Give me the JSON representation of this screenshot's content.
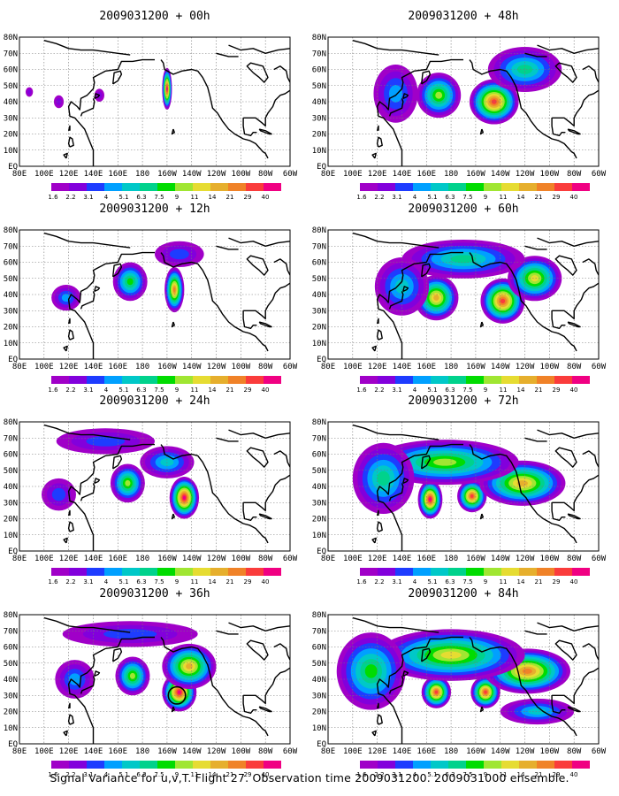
{
  "caption": "Signal Variance for u,v,T. Flight 27. Observation time 2009031200. 2009031000 ensemble.",
  "colors": {
    "scale": [
      "#a000c8",
      "#8200dc",
      "#1e3cff",
      "#00a0ff",
      "#00c8c8",
      "#00d28c",
      "#00dc00",
      "#a0e632",
      "#e6dc32",
      "#e6af2d",
      "#f08228",
      "#fa3c3c",
      "#f00082"
    ],
    "land": "#000000",
    "grid": "#777777"
  },
  "chart_data": [
    {
      "type": "heatmap",
      "title": "2009031200 + 00h",
      "x_ticks": [
        "80E",
        "100E",
        "120E",
        "140E",
        "160E",
        "180",
        "160W",
        "140W",
        "120W",
        "100W",
        "80W",
        "60W"
      ],
      "y_ticks": [
        "80N",
        "70N",
        "60N",
        "50N",
        "40N",
        "30N",
        "20N",
        "10N",
        "EQ"
      ],
      "colorbar": [
        "1.6",
        "2.2",
        "3.1",
        "4",
        "5.1",
        "6.3",
        "7.5",
        "9",
        "11",
        "14",
        "21",
        "29",
        "40"
      ],
      "blobs": [
        {
          "lon": 200,
          "lat": 48,
          "rx": 4,
          "ry": 13,
          "peak": 12
        },
        {
          "lon": 145,
          "lat": 44,
          "rx": 4,
          "ry": 4,
          "peak": 1
        },
        {
          "lon": 112,
          "lat": 40,
          "rx": 4,
          "ry": 4,
          "peak": 1
        },
        {
          "lon": 88,
          "lat": 46,
          "rx": 3,
          "ry": 3,
          "peak": 1
        }
      ]
    },
    {
      "type": "heatmap",
      "title": "2009031200 + 48h",
      "x_ticks": [
        "80E",
        "100E",
        "120E",
        "140E",
        "160E",
        "180",
        "160W",
        "140W",
        "120W",
        "100W",
        "80W",
        "60W"
      ],
      "y_ticks": [
        "80N",
        "70N",
        "60N",
        "50N",
        "40N",
        "30N",
        "20N",
        "10N",
        "EQ"
      ],
      "colorbar": [
        "1.6",
        "2.2",
        "3.1",
        "4",
        "5.1",
        "6.3",
        "7.5",
        "9",
        "11",
        "14",
        "21",
        "29",
        "40"
      ],
      "blobs": [
        {
          "lon": 215,
          "lat": 40,
          "rx": 20,
          "ry": 14,
          "peak": 11
        },
        {
          "lon": 170,
          "lat": 44,
          "rx": 18,
          "ry": 14,
          "peak": 7
        },
        {
          "lon": 240,
          "lat": 60,
          "rx": 30,
          "ry": 14,
          "peak": 5
        },
        {
          "lon": 135,
          "lat": 45,
          "rx": 18,
          "ry": 18,
          "peak": 3
        }
      ]
    },
    {
      "type": "heatmap",
      "title": "2009031200 + 12h",
      "x_ticks": [
        "80E",
        "100E",
        "120E",
        "140E",
        "160E",
        "180",
        "160W",
        "140W",
        "120W",
        "100W",
        "80W",
        "60W"
      ],
      "y_ticks": [
        "80N",
        "70N",
        "60N",
        "50N",
        "40N",
        "30N",
        "20N",
        "10N",
        "EQ"
      ],
      "colorbar": [
        "1.6",
        "2.2",
        "3.1",
        "4",
        "5.1",
        "6.3",
        "7.5",
        "9",
        "11",
        "14",
        "21",
        "29",
        "40"
      ],
      "blobs": [
        {
          "lon": 206,
          "lat": 43,
          "rx": 8,
          "ry": 14,
          "peak": 10
        },
        {
          "lon": 170,
          "lat": 48,
          "rx": 14,
          "ry": 12,
          "peak": 6
        },
        {
          "lon": 118,
          "lat": 38,
          "rx": 12,
          "ry": 8,
          "peak": 3
        },
        {
          "lon": 210,
          "lat": 65,
          "rx": 20,
          "ry": 8,
          "peak": 2
        }
      ]
    },
    {
      "type": "heatmap",
      "title": "2009031200 + 60h",
      "x_ticks": [
        "80E",
        "100E",
        "120E",
        "140E",
        "160E",
        "180",
        "160W",
        "140W",
        "120W",
        "100W",
        "80W",
        "60W"
      ],
      "y_ticks": [
        "80N",
        "70N",
        "60N",
        "50N",
        "40N",
        "30N",
        "20N",
        "10N",
        "EQ"
      ],
      "colorbar": [
        "1.6",
        "2.2",
        "3.1",
        "4",
        "5.1",
        "6.3",
        "7.5",
        "9",
        "11",
        "14",
        "21",
        "29",
        "40"
      ],
      "blobs": [
        {
          "lon": 222,
          "lat": 36,
          "rx": 18,
          "ry": 14,
          "peak": 11
        },
        {
          "lon": 168,
          "lat": 38,
          "rx": 18,
          "ry": 14,
          "peak": 9
        },
        {
          "lon": 248,
          "lat": 50,
          "rx": 22,
          "ry": 14,
          "peak": 8
        },
        {
          "lon": 190,
          "lat": 62,
          "rx": 50,
          "ry": 12,
          "peak": 5
        },
        {
          "lon": 140,
          "lat": 45,
          "rx": 22,
          "ry": 18,
          "peak": 4
        }
      ]
    },
    {
      "type": "heatmap",
      "title": "2009031200 + 24h",
      "x_ticks": [
        "80E",
        "100E",
        "120E",
        "140E",
        "160E",
        "180",
        "160W",
        "140W",
        "120W",
        "100W",
        "80W",
        "60W"
      ],
      "y_ticks": [
        "80N",
        "70N",
        "60N",
        "50N",
        "40N",
        "30N",
        "20N",
        "10N",
        "EQ"
      ],
      "colorbar": [
        "1.6",
        "2.2",
        "3.1",
        "4",
        "5.1",
        "6.3",
        "7.5",
        "9",
        "11",
        "14",
        "21",
        "29",
        "40"
      ],
      "blobs": [
        {
          "lon": 214,
          "lat": 33,
          "rx": 12,
          "ry": 13,
          "peak": 12
        },
        {
          "lon": 168,
          "lat": 42,
          "rx": 14,
          "ry": 12,
          "peak": 7
        },
        {
          "lon": 200,
          "lat": 55,
          "rx": 22,
          "ry": 10,
          "peak": 4
        },
        {
          "lon": 112,
          "lat": 35,
          "rx": 14,
          "ry": 10,
          "peak": 2
        },
        {
          "lon": 150,
          "lat": 68,
          "rx": 40,
          "ry": 8,
          "peak": 2
        }
      ]
    },
    {
      "type": "heatmap",
      "title": "2009031200 + 72h",
      "x_ticks": [
        "80E",
        "100E",
        "120E",
        "140E",
        "160E",
        "180",
        "160W",
        "140W",
        "120W",
        "100W",
        "80W",
        "60W"
      ],
      "y_ticks": [
        "80N",
        "70N",
        "60N",
        "50N",
        "40N",
        "30N",
        "20N",
        "10N",
        "EQ"
      ],
      "colorbar": [
        "1.6",
        "2.2",
        "3.1",
        "4",
        "5.1",
        "6.3",
        "7.5",
        "9",
        "11",
        "14",
        "21",
        "29",
        "40"
      ],
      "blobs": [
        {
          "lon": 163,
          "lat": 32,
          "rx": 10,
          "ry": 12,
          "peak": 12
        },
        {
          "lon": 197,
          "lat": 34,
          "rx": 12,
          "ry": 10,
          "peak": 11
        },
        {
          "lon": 238,
          "lat": 42,
          "rx": 35,
          "ry": 14,
          "peak": 9
        },
        {
          "lon": 175,
          "lat": 55,
          "rx": 60,
          "ry": 14,
          "peak": 7
        },
        {
          "lon": 125,
          "lat": 45,
          "rx": 25,
          "ry": 22,
          "peak": 5
        }
      ]
    },
    {
      "type": "heatmap",
      "title": "2009031200 + 36h",
      "x_ticks": [
        "80E",
        "100E",
        "120E",
        "140E",
        "160E",
        "180",
        "160W",
        "140W",
        "120W",
        "100W",
        "80W",
        "60W"
      ],
      "y_ticks": [
        "80N",
        "70N",
        "60N",
        "50N",
        "40N",
        "30N",
        "20N",
        "10N",
        "EQ"
      ],
      "colorbar": [
        "1.6",
        "2.2",
        "3.1",
        "4",
        "5.1",
        "6.3",
        "7.5",
        "9",
        "11",
        "14",
        "21",
        "29",
        "40"
      ],
      "circle": {
        "lon": 208,
        "lat": 30,
        "r": 7
      },
      "blobs": [
        {
          "lon": 210,
          "lat": 32,
          "rx": 14,
          "ry": 12,
          "peak": 12
        },
        {
          "lon": 172,
          "lat": 42,
          "rx": 14,
          "ry": 12,
          "peak": 7
        },
        {
          "lon": 218,
          "lat": 48,
          "rx": 22,
          "ry": 14,
          "peak": 9
        },
        {
          "lon": 125,
          "lat": 40,
          "rx": 16,
          "ry": 12,
          "peak": 3
        },
        {
          "lon": 170,
          "lat": 68,
          "rx": 55,
          "ry": 8,
          "peak": 2
        }
      ]
    },
    {
      "type": "heatmap",
      "title": "2009031200 + 84h",
      "x_ticks": [
        "80E",
        "100E",
        "120E",
        "140E",
        "160E",
        "180",
        "160W",
        "140W",
        "120W",
        "100W",
        "80W",
        "60W"
      ],
      "y_ticks": [
        "80N",
        "70N",
        "60N",
        "50N",
        "40N",
        "30N",
        "20N",
        "10N",
        "EQ"
      ],
      "colorbar": [
        "1.6",
        "2.2",
        "3.1",
        "4",
        "5.1",
        "6.3",
        "7.5",
        "9",
        "11",
        "14",
        "21",
        "29",
        "40"
      ],
      "blobs": [
        {
          "lon": 208,
          "lat": 32,
          "rx": 12,
          "ry": 10,
          "peak": 11
        },
        {
          "lon": 168,
          "lat": 32,
          "rx": 12,
          "ry": 10,
          "peak": 11
        },
        {
          "lon": 242,
          "lat": 45,
          "rx": 35,
          "ry": 14,
          "peak": 10
        },
        {
          "lon": 180,
          "lat": 55,
          "rx": 60,
          "ry": 16,
          "peak": 8
        },
        {
          "lon": 115,
          "lat": 45,
          "rx": 28,
          "ry": 24,
          "peak": 6
        },
        {
          "lon": 250,
          "lat": 20,
          "rx": 30,
          "ry": 8,
          "peak": 4
        }
      ]
    }
  ]
}
